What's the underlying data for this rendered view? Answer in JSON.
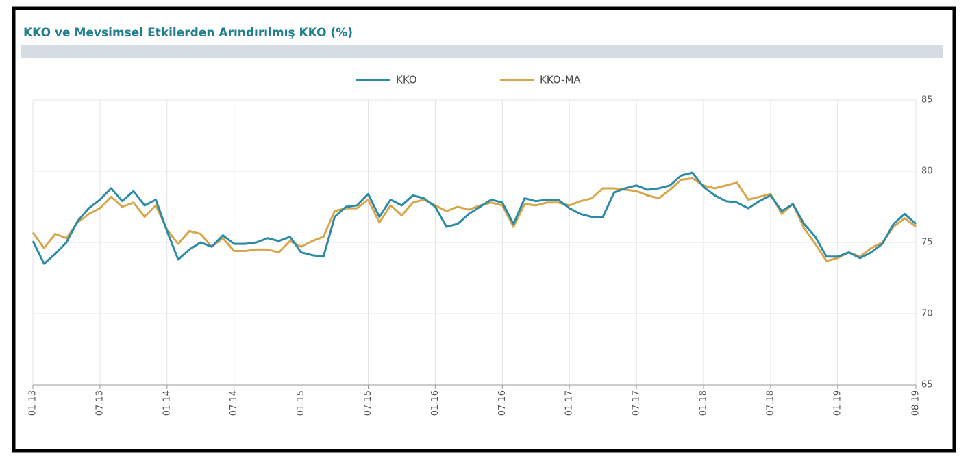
{
  "chart_data": {
    "type": "line",
    "title": "KKO ve Mevsimsel Etkilerden Arındırılmış KKO (%)",
    "categories": [
      "01.13",
      null,
      null,
      null,
      null,
      null,
      "07.13",
      null,
      null,
      null,
      null,
      null,
      "01.14",
      null,
      null,
      null,
      null,
      null,
      "07.14",
      null,
      null,
      null,
      null,
      null,
      "01.15",
      null,
      null,
      null,
      null,
      null,
      "07.15",
      null,
      null,
      null,
      null,
      null,
      "01.16",
      null,
      null,
      null,
      null,
      null,
      "07.16",
      null,
      null,
      null,
      null,
      null,
      "01.17",
      null,
      null,
      null,
      null,
      null,
      "07.17",
      null,
      null,
      null,
      null,
      null,
      "01.18",
      null,
      null,
      null,
      null,
      null,
      "07.18",
      null,
      null,
      null,
      null,
      null,
      "01.19",
      null,
      null,
      null,
      null,
      null,
      null,
      "08.19"
    ],
    "series": [
      {
        "name": "KKO",
        "color": "#2a8aa8",
        "values": [
          75.1,
          73.5,
          74.2,
          75.0,
          76.5,
          77.4,
          78.0,
          78.8,
          77.9,
          78.6,
          77.6,
          78.0,
          75.8,
          73.8,
          74.5,
          75.0,
          74.7,
          75.5,
          74.9,
          74.9,
          75.0,
          75.3,
          75.1,
          75.4,
          74.3,
          74.1,
          74.0,
          76.8,
          77.5,
          77.6,
          78.4,
          76.8,
          78.0,
          77.6,
          78.3,
          78.1,
          77.5,
          76.1,
          76.3,
          77.0,
          77.5,
          78.0,
          77.8,
          76.3,
          78.1,
          77.9,
          78.0,
          78.0,
          77.4,
          77.0,
          76.8,
          76.8,
          78.5,
          78.8,
          79.0,
          78.7,
          78.8,
          79.0,
          79.7,
          79.9,
          78.9,
          78.3,
          77.9,
          77.8,
          77.4,
          77.9,
          78.3,
          77.2,
          77.7,
          76.3,
          75.4,
          74.0,
          74.0,
          74.3,
          73.9,
          74.3,
          74.9,
          76.3,
          77.0,
          76.3
        ]
      },
      {
        "name": "KKO-MA",
        "color": "#d9a54a",
        "values": [
          75.7,
          74.6,
          75.6,
          75.3,
          76.4,
          77.0,
          77.4,
          78.2,
          77.5,
          77.8,
          76.8,
          77.6,
          75.9,
          74.9,
          75.8,
          75.6,
          74.7,
          75.3,
          74.4,
          74.4,
          74.5,
          74.5,
          74.3,
          75.1,
          74.7,
          75.1,
          75.4,
          77.2,
          77.4,
          77.4,
          78.0,
          76.4,
          77.6,
          76.9,
          77.8,
          78.0,
          77.6,
          77.2,
          77.5,
          77.3,
          77.6,
          77.8,
          77.6,
          76.1,
          77.7,
          77.6,
          77.8,
          77.8,
          77.6,
          77.9,
          78.1,
          78.8,
          78.8,
          78.7,
          78.6,
          78.3,
          78.1,
          78.7,
          79.4,
          79.5,
          79.0,
          78.8,
          79.0,
          79.2,
          78.0,
          78.2,
          78.4,
          77.0,
          77.7,
          76.0,
          74.9,
          73.7,
          73.9,
          74.3,
          74.0,
          74.6,
          75.0,
          76.1,
          76.7,
          76.1
        ]
      }
    ],
    "ylim": [
      65,
      85
    ],
    "yticks": [
      65,
      70,
      75,
      80,
      85
    ],
    "grid": true
  }
}
